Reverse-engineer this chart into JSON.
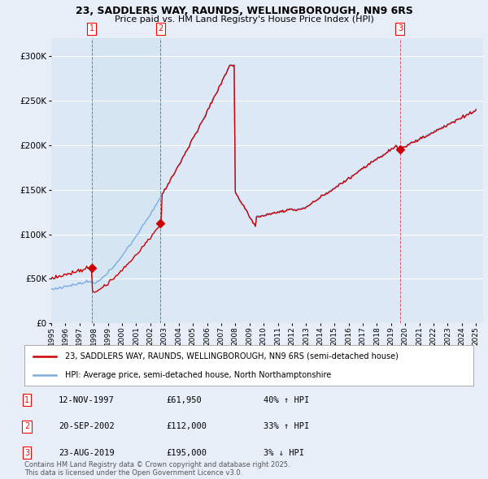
{
  "title": "23, SADDLERS WAY, RAUNDS, WELLINGBOROUGH, NN9 6RS",
  "subtitle": "Price paid vs. HM Land Registry's House Price Index (HPI)",
  "ylim": [
    0,
    320000
  ],
  "yticks": [
    0,
    50000,
    100000,
    150000,
    200000,
    250000,
    300000
  ],
  "bg_color": "#e8eef8",
  "plot_bg_color": "#dce8f5",
  "grid_color": "#ffffff",
  "red_color": "#cc0000",
  "blue_color": "#7aade0",
  "sale_years": [
    1997.87,
    2002.72,
    2019.64
  ],
  "sale_prices": [
    61950,
    112000,
    195000
  ],
  "legend_red": "23, SADDLERS WAY, RAUNDS, WELLINGBOROUGH, NN9 6RS (semi-detached house)",
  "legend_blue": "HPI: Average price, semi-detached house, North Northamptonshire",
  "table_rows": [
    {
      "num": "1",
      "date": "12-NOV-1997",
      "price": "£61,950",
      "hpi": "40% ↑ HPI"
    },
    {
      "num": "2",
      "date": "20-SEP-2002",
      "price": "£112,000",
      "hpi": "33% ↑ HPI"
    },
    {
      "num": "3",
      "date": "23-AUG-2019",
      "price": "£195,000",
      "hpi": "3% ↓ HPI"
    }
  ],
  "footer": "Contains HM Land Registry data © Crown copyright and database right 2025.\nThis data is licensed under the Open Government Licence v3.0."
}
